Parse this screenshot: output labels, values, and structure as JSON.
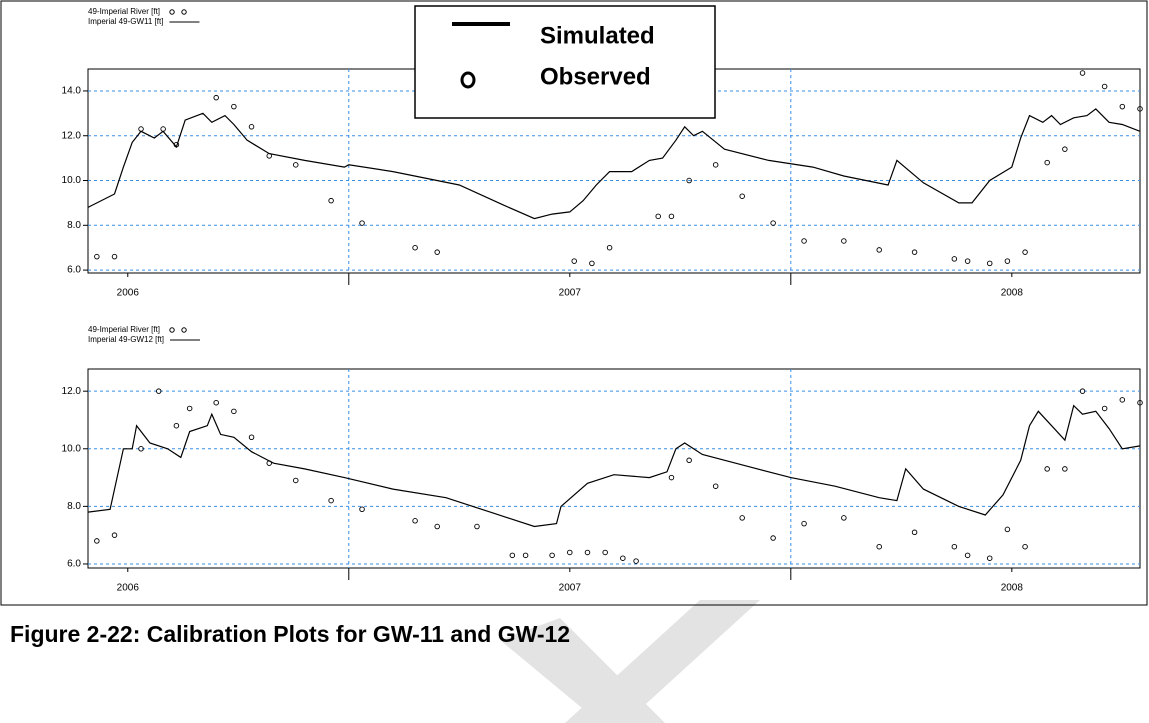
{
  "caption": "Figure 2-22: Calibration Plots for GW-11 and GW-12",
  "legend_box": {
    "labels": [
      "Simulated",
      "Observed"
    ]
  },
  "chart_data": [
    {
      "type": "line",
      "xlim": [
        2005.91,
        2008.29
      ],
      "xticks": [
        2006,
        2007,
        2008
      ],
      "xgrid_lines": [
        2006.5,
        2007.5
      ],
      "ylim": [
        5.87,
        14.98
      ],
      "yticks": [
        {
          "value": 6,
          "label": "6.0"
        },
        {
          "value": 8,
          "label": "8.0"
        },
        {
          "value": 10,
          "label": "10.0"
        },
        {
          "value": 12,
          "label": "12.0"
        },
        {
          "value": 14,
          "label": "14.0"
        }
      ],
      "grid": true,
      "series": [
        {
          "name": "49-Imperial River  [ft]",
          "style": "open-circle",
          "color": "#000000",
          "x": [
            2005.93,
            2005.97,
            2006.03,
            2006.08,
            2006.11,
            2006.2,
            2006.24,
            2006.28,
            2006.32,
            2006.38,
            2006.46,
            2006.53,
            2006.65,
            2006.7,
            2007.01,
            2007.05,
            2007.09,
            2007.2,
            2007.23,
            2007.27,
            2007.33,
            2007.39,
            2007.46,
            2007.53,
            2007.62,
            2007.7,
            2007.78,
            2007.87,
            2007.9,
            2007.95,
            2007.99,
            2008.03,
            2008.08,
            2008.12,
            2008.16,
            2008.21,
            2008.25,
            2008.29
          ],
          "values": [
            6.6,
            6.6,
            12.3,
            12.3,
            11.6,
            13.7,
            13.3,
            12.4,
            11.1,
            10.7,
            9.1,
            8.1,
            7.0,
            6.8,
            6.4,
            6.3,
            7.0,
            8.4,
            8.4,
            10.0,
            10.7,
            9.3,
            8.1,
            7.3,
            7.3,
            6.9,
            6.8,
            6.5,
            6.4,
            6.3,
            6.4,
            6.8,
            10.8,
            11.4,
            14.8,
            14.2,
            13.3,
            13.2
          ]
        },
        {
          "name": "Imperial 49-GW11 [ft]",
          "style": "line",
          "color": "#000000",
          "x": [
            2005.91,
            2005.97,
            2005.99,
            2006.01,
            2006.03,
            2006.06,
            2006.08,
            2006.11,
            2006.13,
            2006.17,
            2006.19,
            2006.22,
            2006.24,
            2006.27,
            2006.32,
            2006.4,
            2006.49,
            2006.5,
            2006.6,
            2006.75,
            2006.85,
            2006.92,
            2006.96,
            2007.0,
            2007.03,
            2007.06,
            2007.09,
            2007.14,
            2007.18,
            2007.21,
            2007.24,
            2007.26,
            2007.28,
            2007.3,
            2007.35,
            2007.45,
            2007.55,
            2007.62,
            2007.72,
            2007.74,
            2007.8,
            2007.88,
            2007.91,
            2007.95,
            2008.0,
            2008.02,
            2008.04,
            2008.07,
            2008.09,
            2008.11,
            2008.14,
            2008.17,
            2008.19,
            2008.22,
            2008.25,
            2008.29
          ],
          "values": [
            8.8,
            9.4,
            10.6,
            11.7,
            12.2,
            11.9,
            12.2,
            11.5,
            12.7,
            13.0,
            12.6,
            12.9,
            12.5,
            11.8,
            11.2,
            10.9,
            10.6,
            10.7,
            10.4,
            9.8,
            8.9,
            8.3,
            8.5,
            8.6,
            9.1,
            9.8,
            10.4,
            10.4,
            10.9,
            11.0,
            11.8,
            12.4,
            12.0,
            12.2,
            11.4,
            10.9,
            10.6,
            10.2,
            9.8,
            10.9,
            9.9,
            9.0,
            9.0,
            10.0,
            10.6,
            11.9,
            12.9,
            12.6,
            12.9,
            12.5,
            12.8,
            12.9,
            13.2,
            12.6,
            12.5,
            12.2
          ]
        }
      ]
    },
    {
      "type": "line",
      "xlim": [
        2005.91,
        2008.29
      ],
      "xticks": [
        2006,
        2007,
        2008
      ],
      "xgrid_lines": [
        2006.5,
        2007.5
      ],
      "ylim": [
        5.86,
        12.77
      ],
      "yticks": [
        {
          "value": 6,
          "label": "6.0"
        },
        {
          "value": 8,
          "label": "8.0"
        },
        {
          "value": 10,
          "label": "10.0"
        },
        {
          "value": 12,
          "label": "12.0"
        }
      ],
      "grid": true,
      "series": [
        {
          "name": "49-Imperial River  [ft]",
          "style": "open-circle",
          "color": "#000000",
          "x": [
            2005.93,
            2005.97,
            2006.03,
            2006.07,
            2006.11,
            2006.14,
            2006.2,
            2006.24,
            2006.28,
            2006.32,
            2006.38,
            2006.46,
            2006.53,
            2006.65,
            2006.7,
            2006.79,
            2006.87,
            2006.9,
            2006.96,
            2007.0,
            2007.04,
            2007.08,
            2007.12,
            2007.15,
            2007.23,
            2007.27,
            2007.33,
            2007.39,
            2007.46,
            2007.53,
            2007.62,
            2007.7,
            2007.78,
            2007.87,
            2007.9,
            2007.95,
            2007.99,
            2008.03,
            2008.08,
            2008.12,
            2008.16,
            2008.21,
            2008.25,
            2008.29
          ],
          "values": [
            6.8,
            7.0,
            10.0,
            12.0,
            10.8,
            11.4,
            11.6,
            11.3,
            10.4,
            9.5,
            8.9,
            8.2,
            7.9,
            7.5,
            7.3,
            7.3,
            6.3,
            6.3,
            6.3,
            6.4,
            6.4,
            6.4,
            6.2,
            6.1,
            9.0,
            9.6,
            8.7,
            7.6,
            6.9,
            7.4,
            7.6,
            6.6,
            7.1,
            6.6,
            6.3,
            6.2,
            7.2,
            6.6,
            9.3,
            9.3,
            12.0,
            11.4,
            11.7,
            11.6
          ]
        },
        {
          "name": "Imperial 49-GW12 [ft]",
          "style": "line",
          "color": "#000000",
          "x": [
            2005.91,
            2005.96,
            2005.99,
            2006.01,
            2006.02,
            2006.05,
            2006.09,
            2006.12,
            2006.14,
            2006.18,
            2006.19,
            2006.21,
            2006.24,
            2006.28,
            2006.33,
            2006.4,
            2006.49,
            2006.6,
            2006.72,
            2006.82,
            2006.92,
            2006.97,
            2006.98,
            2007.04,
            2007.1,
            2007.18,
            2007.22,
            2007.24,
            2007.26,
            2007.3,
            2007.4,
            2007.5,
            2007.6,
            2007.7,
            2007.74,
            2007.76,
            2007.8,
            2007.88,
            2007.94,
            2007.98,
            2008.02,
            2008.04,
            2008.06,
            2008.09,
            2008.12,
            2008.14,
            2008.16,
            2008.19,
            2008.22,
            2008.25,
            2008.29
          ],
          "values": [
            7.8,
            7.9,
            10.0,
            10.0,
            10.8,
            10.2,
            10.0,
            9.7,
            10.6,
            10.8,
            11.2,
            10.5,
            10.4,
            9.9,
            9.5,
            9.3,
            9.0,
            8.6,
            8.3,
            7.8,
            7.3,
            7.4,
            8.0,
            8.8,
            9.1,
            9.0,
            9.2,
            10.0,
            10.2,
            9.8,
            9.4,
            9.0,
            8.7,
            8.3,
            8.2,
            9.3,
            8.6,
            8.0,
            7.7,
            8.4,
            9.6,
            10.8,
            11.3,
            10.8,
            10.3,
            11.5,
            11.2,
            11.3,
            10.7,
            10.0,
            10.1
          ]
        }
      ]
    }
  ]
}
